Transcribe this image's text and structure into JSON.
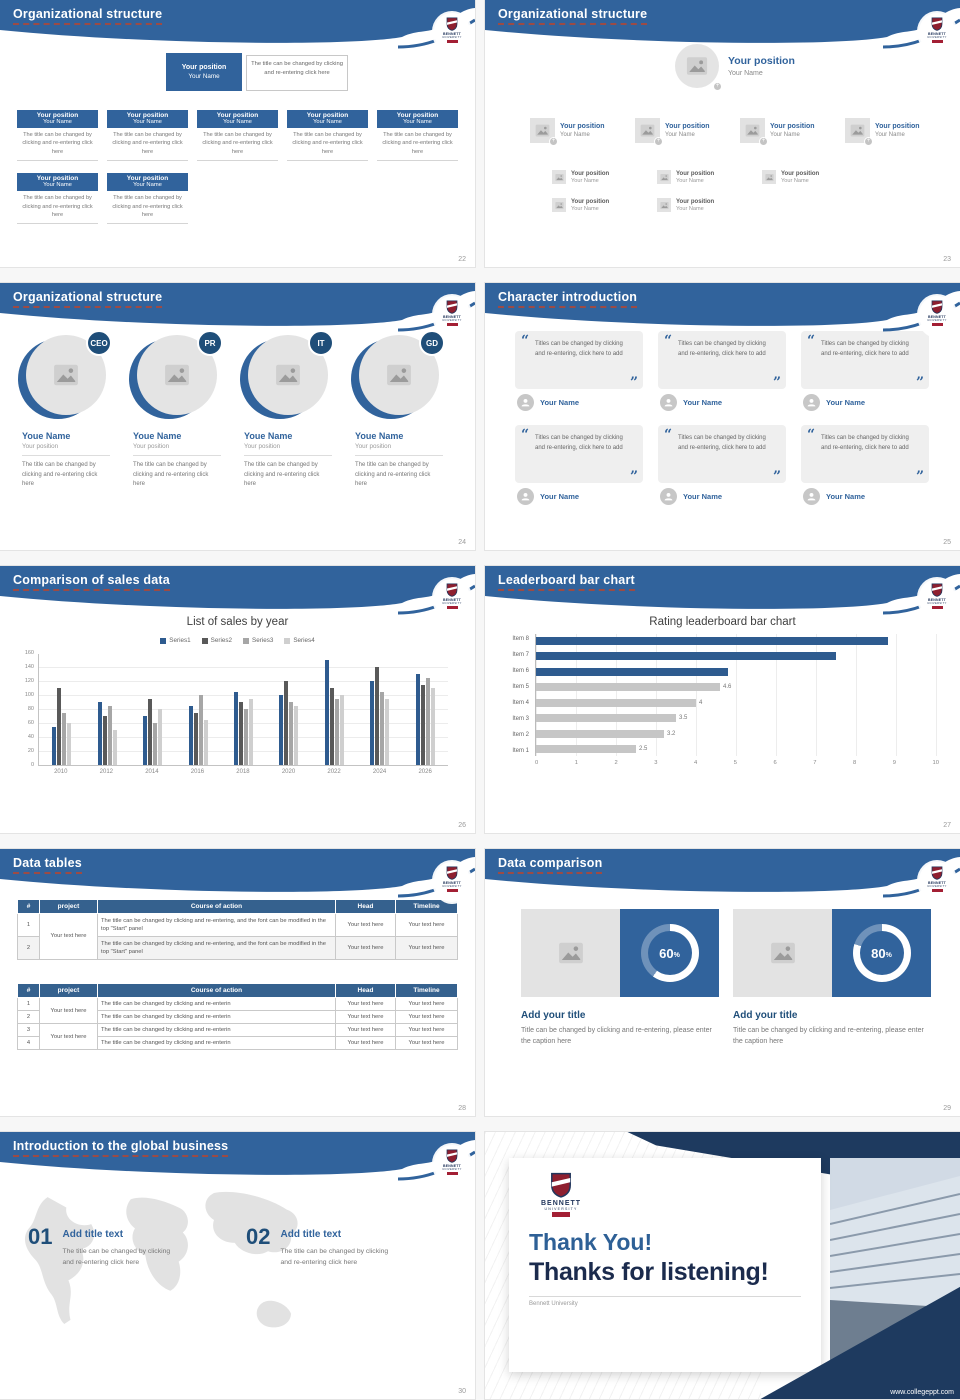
{
  "theme": {
    "blue": "#31639C",
    "navy": "#1E3A5F",
    "dash": "#9C4B45",
    "table_header": "#35618E"
  },
  "crest": {
    "line1": "BENNETT",
    "line2": "UNIVERSITY"
  },
  "s22": {
    "title": "Organizational structure",
    "page": "22",
    "root_position": "Your position",
    "root_name": "Your Name",
    "note": "The title can be changed by clicking and re-entering click here",
    "node_position": "Your position",
    "node_name": "Your Name",
    "node_text": "The title can be changed by clicking and re-entering click here"
  },
  "s23": {
    "title": "Organizational structure",
    "page": "23",
    "position": "Your position",
    "name": "Your Name"
  },
  "s24": {
    "title": "Organizational structure",
    "page": "24",
    "roles": [
      "CEO",
      "PR",
      "IT",
      "GD"
    ],
    "name": "Youe Name",
    "position": "Your position",
    "text": "The title can be changed by clicking and re-entering click here"
  },
  "s25": {
    "title": "Character introduction",
    "page": "25",
    "quote": "Titles can be changed by clicking and re-entering, click here to add",
    "name": "Your Name"
  },
  "s26": {
    "title": "Comparison of sales data",
    "page": "26",
    "chart_data": {
      "type": "bar",
      "title": "List of sales by year",
      "categories": [
        "2010",
        "2012",
        "2014",
        "2016",
        "2018",
        "2020",
        "2022",
        "2024",
        "2026"
      ],
      "series": [
        {
          "name": "Series1",
          "values": [
            55,
            90,
            70,
            85,
            105,
            100,
            150,
            120,
            130
          ]
        },
        {
          "name": "Series2",
          "values": [
            110,
            70,
            95,
            75,
            90,
            120,
            110,
            140,
            115
          ]
        },
        {
          "name": "Series3",
          "values": [
            75,
            85,
            60,
            100,
            80,
            90,
            95,
            105,
            125
          ]
        },
        {
          "name": "Series4",
          "values": [
            60,
            50,
            80,
            65,
            95,
            85,
            100,
            95,
            110
          ]
        }
      ],
      "ylim": [
        0,
        160
      ],
      "yticks": [
        "160",
        "140",
        "120",
        "100",
        "80",
        "60",
        "40",
        "20",
        "0"
      ],
      "legend_position": "top",
      "grid": true
    }
  },
  "s27": {
    "title": "Leaderboard bar chart",
    "page": "27",
    "chart_data": {
      "type": "bar-horizontal",
      "title": "Rating leaderboard bar chart",
      "categories": [
        "Item 8",
        "Item 7",
        "Item 6",
        "Item 5",
        "Item 4",
        "Item 3",
        "Item 2",
        "Item 1"
      ],
      "values": [
        8.8,
        7.5,
        4.8,
        4.6,
        4,
        3.5,
        3.2,
        2.5
      ],
      "xlim": [
        0,
        10
      ],
      "xticks": [
        "0",
        "1",
        "2",
        "3",
        "4",
        "5",
        "6",
        "7",
        "8",
        "9",
        "10"
      ],
      "grid": true
    }
  },
  "s28": {
    "title": "Data tables",
    "page": "28",
    "headers": [
      "#",
      "project",
      "Course of action",
      "Head",
      "Timeline"
    ],
    "cell": "Your text here",
    "t1_course": "The title can be changed by clicking and re-entering, and the font can be modified in the top \"Start\" panel",
    "t1_rows": [
      "1",
      "2"
    ],
    "t2_course": "The title can be changed by clicking and re-enterin",
    "t2_rows": [
      "1",
      "2",
      "3",
      "4"
    ]
  },
  "s29": {
    "title": "Data comparison",
    "page": "29",
    "panels": [
      {
        "percent": "60",
        "unit": "%",
        "label": "Add your title",
        "caption": "Title can be changed by clicking and re-entering, please enter the caption here"
      },
      {
        "percent": "80",
        "unit": "%",
        "label": "Add your title",
        "caption": "Title can be changed by clicking and re-entering, please enter the caption here"
      }
    ]
  },
  "s30": {
    "title": "Introduction to the global business",
    "page": "30",
    "items": [
      {
        "num": "01",
        "title": "Add title text",
        "body": "The title can be changed by clicking and re-entering click here"
      },
      {
        "num": "02",
        "title": "Add title text",
        "body": "The title can be changed by clicking and re-entering click here"
      }
    ]
  },
  "s31": {
    "thank_title": "Thank You!",
    "thank_sub": "Thanks for listening!",
    "org": "Bennett University",
    "url": "www.collegeppt.com"
  }
}
